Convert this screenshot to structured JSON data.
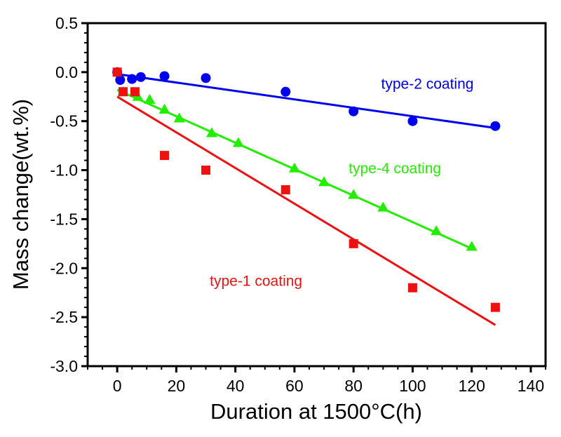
{
  "chart_data": {
    "type": "scatter",
    "title": "",
    "xlabel": "Duration at 1500°C(h)",
    "ylabel": "Mass change(wt.%)",
    "xlim": [
      -10,
      145
    ],
    "ylim": [
      -3.0,
      0.5
    ],
    "xticks": [
      0,
      20,
      40,
      60,
      80,
      100,
      120,
      140
    ],
    "yticks": [
      0.5,
      0.0,
      -0.5,
      -1.0,
      -1.5,
      -2.0,
      -2.5,
      -3.0
    ],
    "ytick_labels": [
      "0.5",
      "0.0",
      "-0.5",
      "-1.0",
      "-1.5",
      "-2.0",
      "-2.5",
      "-3.0"
    ],
    "grid": false,
    "series": [
      {
        "name": "type-2 coating",
        "color": "#0000ee",
        "marker": "circle",
        "x": [
          0,
          1,
          5,
          8,
          16,
          30,
          57,
          80,
          100,
          128
        ],
        "y": [
          0.0,
          -0.08,
          -0.07,
          -0.05,
          -0.04,
          -0.06,
          -0.2,
          -0.4,
          -0.5,
          -0.55
        ],
        "fit": {
          "x": [
            0,
            128
          ],
          "y": [
            -0.02,
            -0.57
          ]
        }
      },
      {
        "name": "type-4 coating",
        "color": "#22ee00",
        "marker": "triangle",
        "x": [
          2,
          7,
          11,
          16,
          21,
          32,
          41,
          60,
          70,
          80,
          90,
          108,
          120
        ],
        "y": [
          -0.2,
          -0.25,
          -0.28,
          -0.38,
          -0.47,
          -0.62,
          -0.72,
          -0.98,
          -1.12,
          -1.25,
          -1.38,
          -1.62,
          -1.78
        ],
        "fit": {
          "x": [
            0,
            120
          ],
          "y": [
            -0.18,
            -1.8
          ]
        }
      },
      {
        "name": "type-1 coating",
        "color": "#ee1111",
        "marker": "square",
        "x": [
          0,
          2,
          6,
          16,
          30,
          57,
          80,
          100,
          128
        ],
        "y": [
          0.0,
          -0.2,
          -0.2,
          -0.85,
          -1.0,
          -1.2,
          -1.75,
          -2.2,
          -2.4
        ],
        "fit": {
          "x": [
            0,
            128
          ],
          "y": [
            -0.25,
            -2.58
          ]
        }
      }
    ],
    "annotations": [
      {
        "text": "type-2 coating",
        "x": 105,
        "y": -0.17,
        "color": "#0000ee"
      },
      {
        "text": "type-4 coating",
        "x": 94,
        "y": -1.03,
        "color": "#22ee00"
      },
      {
        "text": "type-1 coating",
        "x": 47,
        "y": -2.18,
        "color": "#ee1111"
      }
    ]
  }
}
